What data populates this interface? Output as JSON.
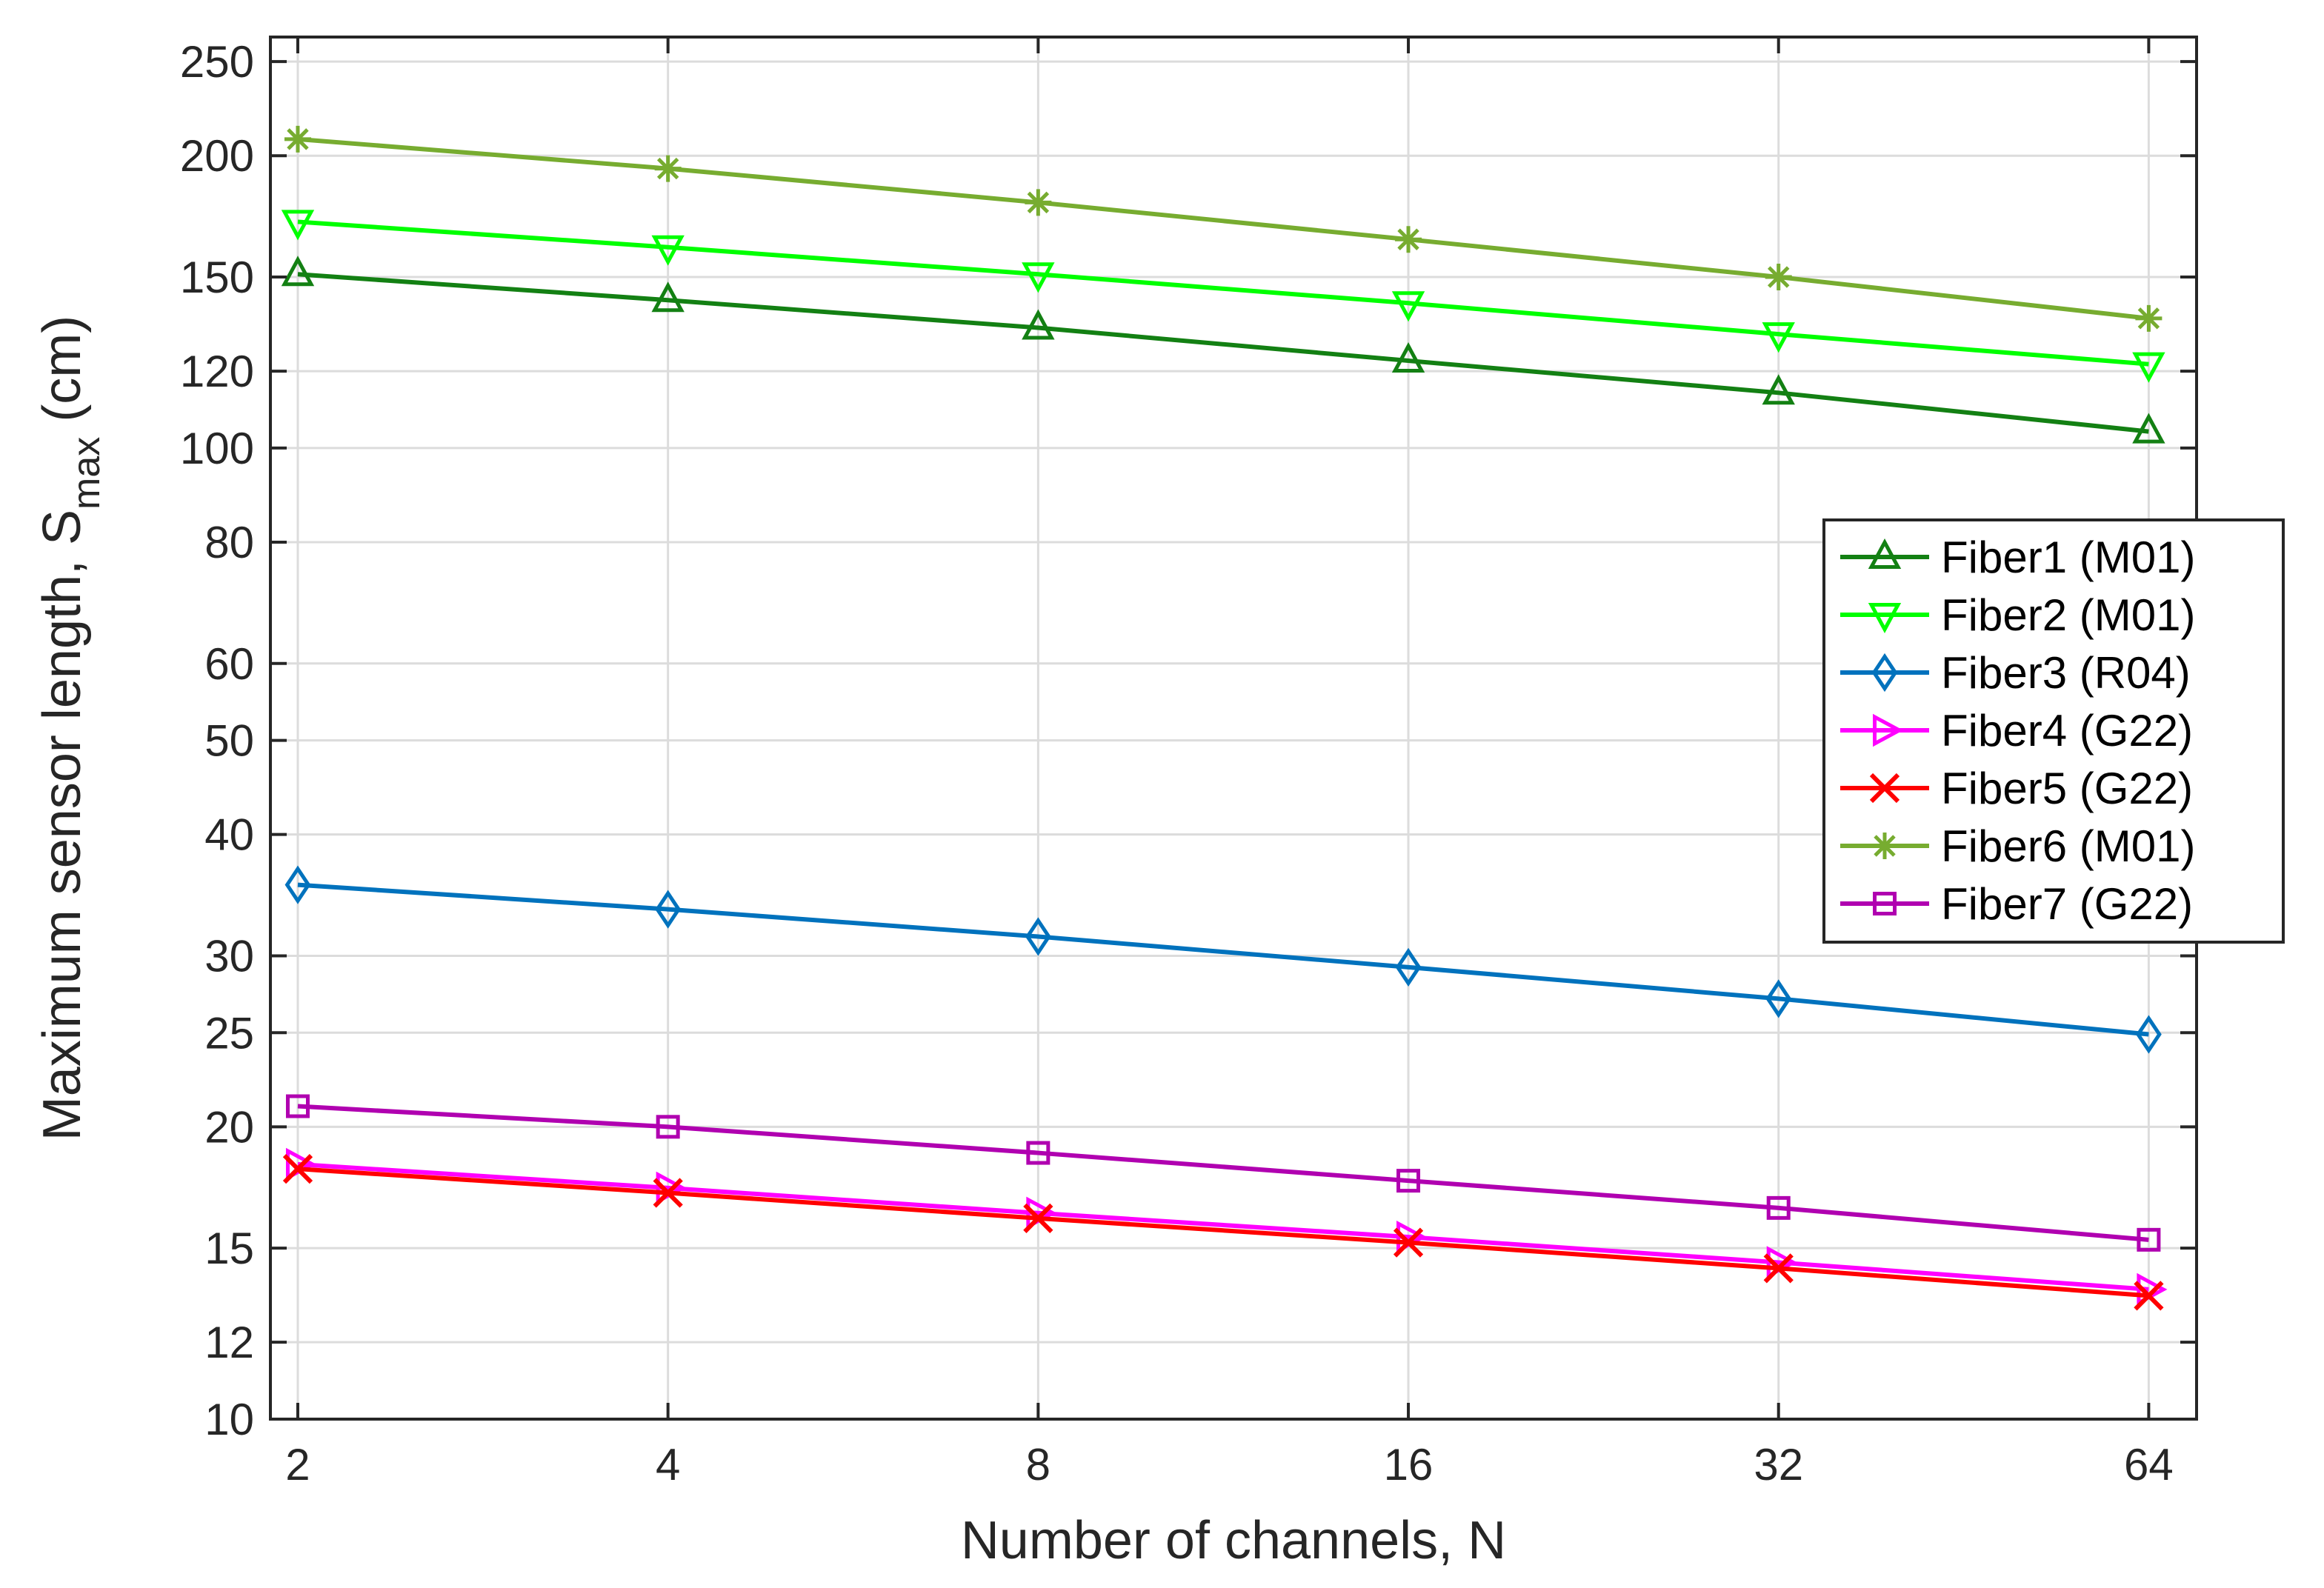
{
  "chart_data": {
    "type": "line",
    "xlabel": "Number of channels, N",
    "ylabel_main": "Maximum sensor length, S",
    "ylabel_sub": "max",
    "ylabel_unit": " (cm)",
    "xscale": "log2",
    "yscale": "log",
    "xlim": [
      1.9,
      70
    ],
    "ylim": [
      10,
      265
    ],
    "x": [
      2,
      4,
      8,
      16,
      32,
      64
    ],
    "xticks": [
      2,
      4,
      8,
      16,
      32,
      64
    ],
    "yticks": [
      10,
      12,
      15,
      20,
      25,
      30,
      40,
      50,
      60,
      80,
      100,
      120,
      150,
      200,
      250
    ],
    "grid": true,
    "legend_position": "right",
    "series": [
      {
        "name": "Fiber1 (M01)",
        "color": "#138013",
        "marker": "triangle-up",
        "values": [
          151,
          142,
          133,
          123,
          114,
          104
        ]
      },
      {
        "name": "Fiber2 (M01)",
        "color": "#00ff00",
        "marker": "triangle-down",
        "values": [
          171,
          161,
          151,
          141,
          131,
          122
        ]
      },
      {
        "name": "Fiber3 (R04)",
        "color": "#0072bd",
        "marker": "diamond",
        "values": [
          35.5,
          33.5,
          31.4,
          29.2,
          27.1,
          24.9
        ]
      },
      {
        "name": "Fiber4 (G22)",
        "color": "#ff00ff",
        "marker": "triangle-right",
        "values": [
          18.3,
          17.3,
          16.3,
          15.4,
          14.5,
          13.6
        ]
      },
      {
        "name": "Fiber5 (G22)",
        "color": "#ff0000",
        "marker": "x",
        "values": [
          18.1,
          17.1,
          16.1,
          15.2,
          14.3,
          13.4
        ]
      },
      {
        "name": "Fiber6 (M01)",
        "color": "#77ac30",
        "marker": "asterisk",
        "values": [
          208,
          194,
          179,
          164,
          150,
          136
        ]
      },
      {
        "name": "Fiber7 (G22)",
        "color": "#b000b0",
        "marker": "square",
        "values": [
          21,
          20,
          18.8,
          17.6,
          16.5,
          15.3
        ]
      }
    ]
  }
}
